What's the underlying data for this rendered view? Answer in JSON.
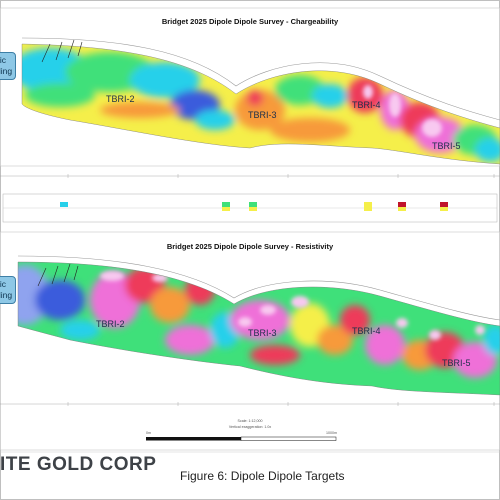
{
  "panels": [
    {
      "id": "chargeability",
      "title": "Bridget 2025 Dipole Dipole Survey - Chargeability",
      "targets": [
        "TBRI-2",
        "TBRI-3",
        "TBRI-4",
        "TBRI-5"
      ],
      "side_label": [
        "ric",
        "lling"
      ]
    },
    {
      "id": "resistivity",
      "title": "Bridget 2025 Dipole Dipole Survey - Resistivity",
      "targets": [
        "TBRI-2",
        "TBRI-3",
        "TBRI-4",
        "TBRI-5"
      ],
      "side_label": [
        "ric",
        "lling"
      ]
    }
  ],
  "scale": {
    "scale_text": "Scale: 1:12,000",
    "vertical_text": "Vertical exaggeration: 1.0x",
    "left_label": "0m",
    "right_label": "1000m"
  },
  "footer": {
    "logo": "ITE GOLD CORP",
    "caption": "Figure 6: Dipole Dipole Targets"
  },
  "colors": {
    "blue": "#3b5bdc",
    "cyan": "#27d0ea",
    "green": "#3fe07a",
    "yellow": "#f5ef4a",
    "orange": "#f79a3a",
    "red": "#ee3a5a",
    "magenta": "#ef6fd8",
    "pale_pink": "#f8c9f0"
  }
}
